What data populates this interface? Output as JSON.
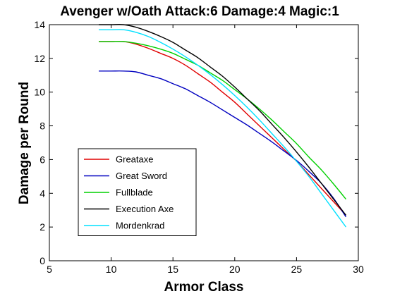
{
  "chart_data": {
    "type": "line",
    "title": "Avenger w/Oath Attack:6 Damage:4 Magic:1",
    "xlabel": "Armor Class",
    "ylabel": "Damage per Round",
    "xlim": [
      5,
      30
    ],
    "ylim": [
      0,
      14
    ],
    "xticks": [
      5,
      10,
      15,
      20,
      25,
      30
    ],
    "yticks": [
      0,
      2,
      4,
      6,
      8,
      10,
      12,
      14
    ],
    "grid": false,
    "legend_position": "lower-left",
    "series": [
      {
        "name": "Greataxe",
        "color": "#e00000",
        "x": [
          9,
          10,
          11,
          12,
          13,
          14,
          15,
          16,
          17,
          18,
          19,
          20,
          21,
          22,
          23,
          24,
          25,
          26,
          27,
          28,
          29
        ],
        "y": [
          13.0,
          13.0,
          13.0,
          12.85,
          12.6,
          12.3,
          12.0,
          11.6,
          11.1,
          10.6,
          10.0,
          9.4,
          8.7,
          8.0,
          7.3,
          6.6,
          5.9,
          5.1,
          4.3,
          3.5,
          2.7
        ]
      },
      {
        "name": "Great Sword",
        "color": "#0000c0",
        "x": [
          9,
          10,
          11,
          12,
          13,
          14,
          15,
          16,
          17,
          18,
          19,
          20,
          21,
          22,
          23,
          24,
          25,
          26,
          27,
          28,
          29
        ],
        "y": [
          11.25,
          11.25,
          11.25,
          11.2,
          11.0,
          10.8,
          10.5,
          10.2,
          9.8,
          9.4,
          8.95,
          8.5,
          8.05,
          7.55,
          7.05,
          6.5,
          5.95,
          5.3,
          4.6,
          3.7,
          2.6
        ]
      },
      {
        "name": "Fullblade",
        "color": "#00d000",
        "x": [
          9,
          10,
          11,
          12,
          13,
          14,
          15,
          16,
          17,
          18,
          19,
          20,
          21,
          22,
          23,
          24,
          25,
          26,
          27,
          28,
          29
        ],
        "y": [
          13.0,
          13.0,
          13.0,
          12.9,
          12.75,
          12.55,
          12.3,
          11.95,
          11.6,
          11.15,
          10.7,
          10.15,
          9.6,
          9.0,
          8.35,
          7.65,
          6.95,
          6.15,
          5.4,
          4.55,
          3.65
        ]
      },
      {
        "name": "Execution Axe",
        "color": "#000000",
        "x": [
          9,
          10,
          11,
          12,
          13,
          14,
          15,
          16,
          17,
          18,
          19,
          20,
          21,
          22,
          23,
          24,
          25,
          26,
          27,
          28,
          29
        ],
        "y": [
          14.0,
          14.0,
          14.0,
          13.85,
          13.6,
          13.3,
          12.95,
          12.5,
          12.05,
          11.5,
          10.95,
          10.3,
          9.6,
          8.9,
          8.1,
          7.3,
          6.45,
          5.55,
          4.6,
          3.65,
          2.7
        ]
      },
      {
        "name": "Mordenkrad",
        "color": "#00e0ff",
        "x": [
          9,
          10,
          11,
          12,
          13,
          14,
          15,
          16,
          17,
          18,
          19,
          20,
          21,
          22,
          23,
          24,
          25,
          26,
          27,
          28,
          29
        ],
        "y": [
          13.7,
          13.7,
          13.7,
          13.55,
          13.3,
          12.95,
          12.55,
          12.1,
          11.6,
          11.05,
          10.45,
          9.8,
          9.1,
          8.35,
          7.55,
          6.75,
          5.9,
          5.0,
          4.0,
          3.0,
          2.0
        ]
      }
    ]
  }
}
